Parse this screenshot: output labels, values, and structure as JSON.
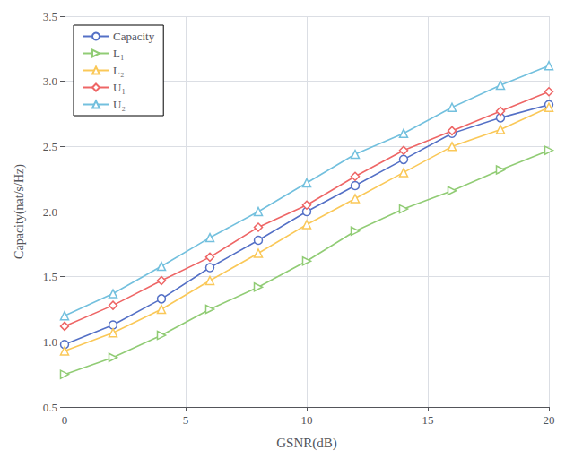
{
  "chart_data": {
    "type": "line",
    "xlabel": "GSNR(dB)",
    "ylabel": "Capacity(nat/s/Hz)",
    "x": [
      0,
      2,
      4,
      6,
      8,
      10,
      12,
      14,
      16,
      18,
      20
    ],
    "series": [
      {
        "name": "Capacity",
        "marker": "circle",
        "values": [
          0.98,
          1.13,
          1.33,
          1.57,
          1.78,
          2.0,
          2.2,
          2.4,
          2.6,
          2.72,
          2.82
        ]
      },
      {
        "name": "L₁",
        "marker": "triangle-right",
        "values": [
          0.75,
          0.88,
          1.05,
          1.25,
          1.42,
          1.62,
          1.85,
          2.02,
          2.16,
          2.32,
          2.47
        ]
      },
      {
        "name": "L₂",
        "marker": "triangle",
        "values": [
          0.93,
          1.07,
          1.25,
          1.47,
          1.68,
          1.9,
          2.1,
          2.3,
          2.5,
          2.63,
          2.8
        ]
      },
      {
        "name": "U₁",
        "marker": "diamond",
        "values": [
          1.12,
          1.28,
          1.47,
          1.65,
          1.88,
          2.05,
          2.27,
          2.47,
          2.62,
          2.77,
          2.92
        ]
      },
      {
        "name": "U₂",
        "marker": "triangle",
        "values": [
          1.2,
          1.37,
          1.58,
          1.8,
          2.0,
          2.22,
          2.44,
          2.6,
          2.8,
          2.97,
          3.12
        ]
      }
    ],
    "xlim": [
      0,
      20
    ],
    "ylim": [
      0.5,
      3.5
    ],
    "xticks": [
      0,
      5,
      10,
      15,
      20
    ],
    "yticks": [
      0.5,
      {
        "value": 1,
        "label": "1.0"
      },
      1.5,
      {
        "value": 2,
        "label": "2.0"
      },
      2.5,
      {
        "value": 3,
        "label": "3.0"
      },
      3.5
    ],
    "grid": true,
    "legend": "upper left"
  }
}
